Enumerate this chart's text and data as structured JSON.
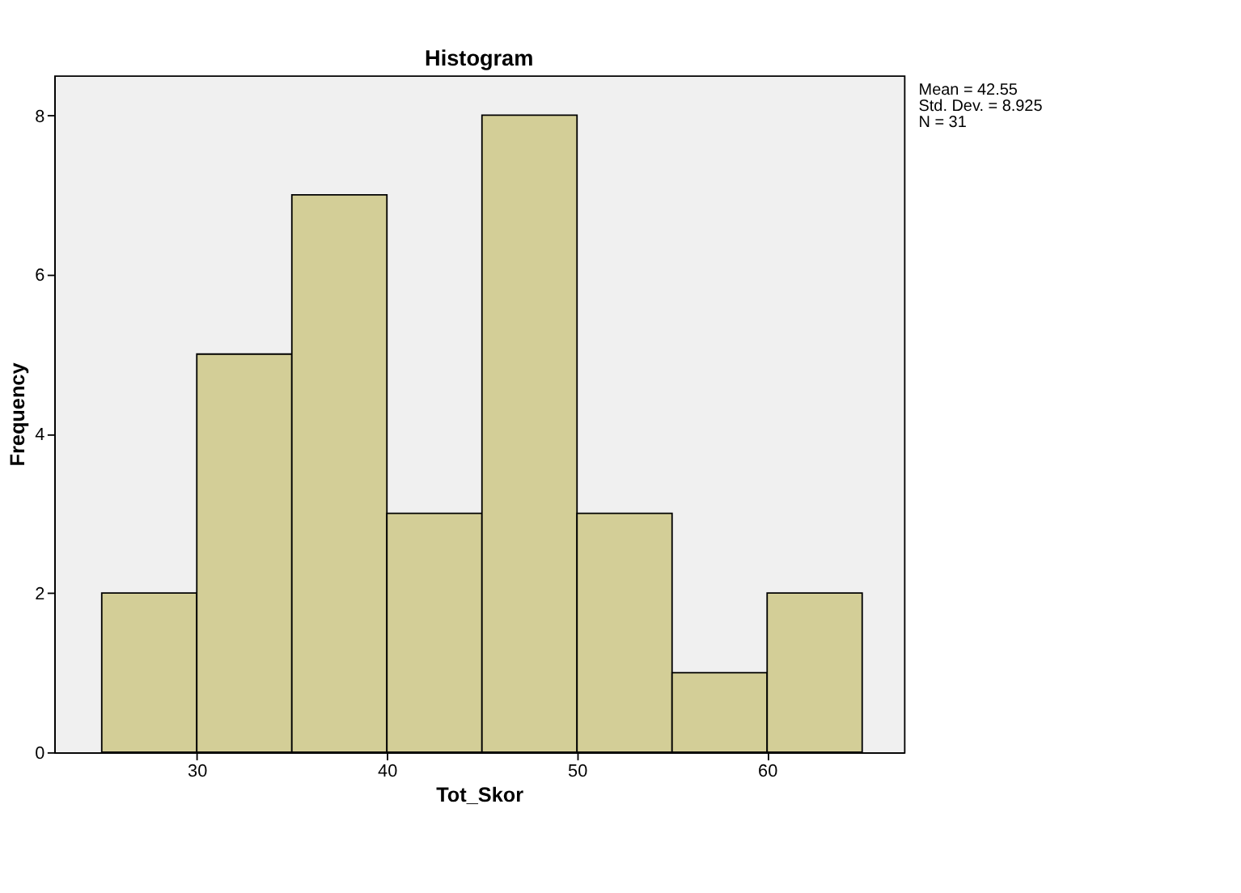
{
  "chart_data": {
    "type": "histogram",
    "title": "Histogram",
    "xlabel": "Tot_Skor",
    "ylabel": "Frequency",
    "bins": [
      25,
      30,
      35,
      40,
      45,
      50,
      55,
      60,
      65
    ],
    "values": [
      2,
      5,
      7,
      3,
      8,
      3,
      1,
      2
    ],
    "color": "#d3ce97",
    "xlim": [
      22.5,
      67.2
    ],
    "xticks": [
      30,
      40,
      50,
      60
    ],
    "ylim": [
      0,
      8.5
    ],
    "yticks": [
      0,
      2,
      4,
      6,
      8
    ],
    "grid": false,
    "annotations": [
      "Mean = 42.55",
      "Std. Dev. = 8.925",
      "N = 31"
    ]
  }
}
